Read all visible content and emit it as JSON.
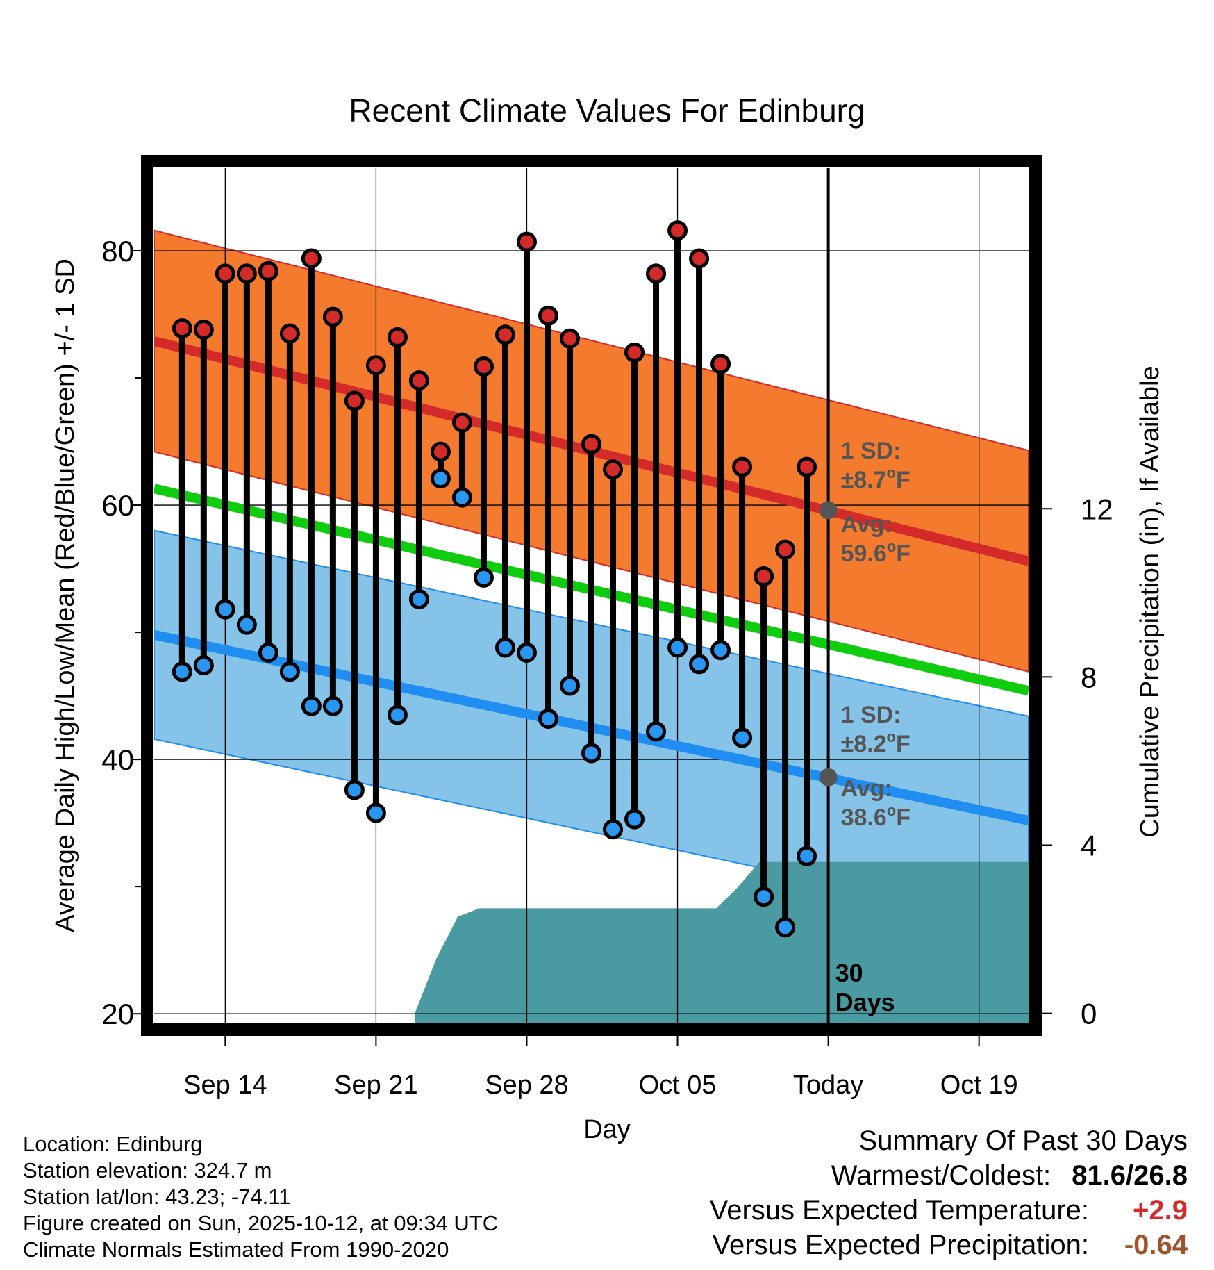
{
  "chart_data": {
    "type": "line",
    "title": "Recent Climate Values For Edinburg",
    "xlabel": "Day",
    "ylabel": "Average Daily High/Low/Mean (Red/Blue/Green) +/- 1 SD",
    "ylabel_right": "Cumulative Precipitation (in), If Available",
    "x_tick_labels": [
      "Sep 14",
      "Sep 21",
      "Sep 28",
      "Oct 05",
      "Today",
      "Oct 19"
    ],
    "x_tick_days": [
      3,
      10,
      17,
      24,
      31,
      38
    ],
    "xlim_days": [
      -0.3,
      40.3
    ],
    "today_day": 31,
    "ylim": [
      19.3,
      86.5
    ],
    "y_ticks": [
      20,
      40,
      60,
      80
    ],
    "precip_ticks": [
      0,
      4,
      8,
      12
    ],
    "precip_ylim": [
      -0.22,
      20.1
    ],
    "days": [
      1,
      2,
      3,
      4,
      5,
      6,
      7,
      8,
      9,
      10,
      11,
      12,
      13,
      14,
      15,
      16,
      17,
      18,
      19,
      20,
      21,
      22,
      23,
      24,
      25,
      26,
      27,
      28,
      29,
      30
    ],
    "daily_high": [
      73.9,
      73.8,
      78.2,
      78.2,
      78.4,
      73.5,
      79.4,
      74.8,
      68.2,
      71.0,
      73.2,
      69.8,
      64.2,
      66.5,
      70.9,
      73.4,
      80.7,
      74.9,
      73.1,
      64.8,
      62.8,
      72.0,
      78.2,
      81.6,
      79.4,
      71.1,
      63.0,
      54.4,
      56.5,
      63.0
    ],
    "daily_low": [
      46.9,
      47.4,
      51.8,
      50.6,
      48.4,
      46.9,
      44.2,
      44.2,
      37.6,
      35.8,
      43.5,
      52.6,
      62.1,
      60.6,
      54.3,
      48.8,
      48.4,
      43.2,
      45.8,
      40.5,
      34.5,
      35.3,
      42.2,
      48.8,
      47.5,
      48.6,
      41.7,
      29.2,
      26.8,
      32.4
    ],
    "normal_high": {
      "start": 72.9,
      "end": 55.6,
      "sd": 8.7,
      "today_avg": 59.6
    },
    "normal_low": {
      "start": 49.8,
      "end": 35.2,
      "sd": 8.2,
      "today_avg": 38.6
    },
    "normal_mean": {
      "start": 61.3,
      "end": 45.4
    },
    "precip_cumulative": [
      [
        11.8,
        0.0
      ],
      [
        12.8,
        1.3
      ],
      [
        13.8,
        2.3
      ],
      [
        14.8,
        2.5
      ],
      [
        15.8,
        2.5
      ],
      [
        25.8,
        2.5
      ],
      [
        26.8,
        3.0
      ],
      [
        27.8,
        3.6
      ],
      [
        40.3,
        3.6
      ]
    ],
    "annotations": {
      "high_sd": "1 SD:",
      "high_sd_val": "±8.7",
      "high_avg": "Avg:",
      "high_avg_val": "59.6",
      "low_sd": "1 SD:",
      "low_sd_val": "±8.2",
      "low_avg": "Avg:",
      "low_avg_val": "38.6",
      "unit_deg": "o",
      "unit_f": "F",
      "days_num": "30",
      "days_label": "Days"
    },
    "colors": {
      "high_band": "#f47a2e",
      "high_line": "#d42a2a",
      "low_band": "#86c3e8",
      "low_line": "#1f8ef0",
      "mean_line": "#0fcc0f",
      "precip": "#4a9aa2",
      "high_marker": "#d42a2a",
      "low_marker": "#2996f2",
      "today_marker": "#555555",
      "annotation": "#555555"
    }
  },
  "info": {
    "location": "Location: Edinburg",
    "elevation": "Station elevation: 324.7 m",
    "latlon": "Station lat/lon: 43.23; -74.11",
    "created": "Figure created on Sun, 2025-10-12, at 09:34 UTC",
    "normals": "Climate Normals Estimated From 1990-2020"
  },
  "summary": {
    "title": "Summary Of Past 30 Days",
    "warmest_label": "Warmest/Coldest:",
    "warmest_value": "81.6/26.8",
    "temp_label": "Versus Expected Temperature:",
    "temp_value": "+2.9",
    "temp_color": "#d42a2a",
    "precip_label": "Versus Expected Precipitation:",
    "precip_value": "-0.64",
    "precip_color": "#a0522d"
  }
}
